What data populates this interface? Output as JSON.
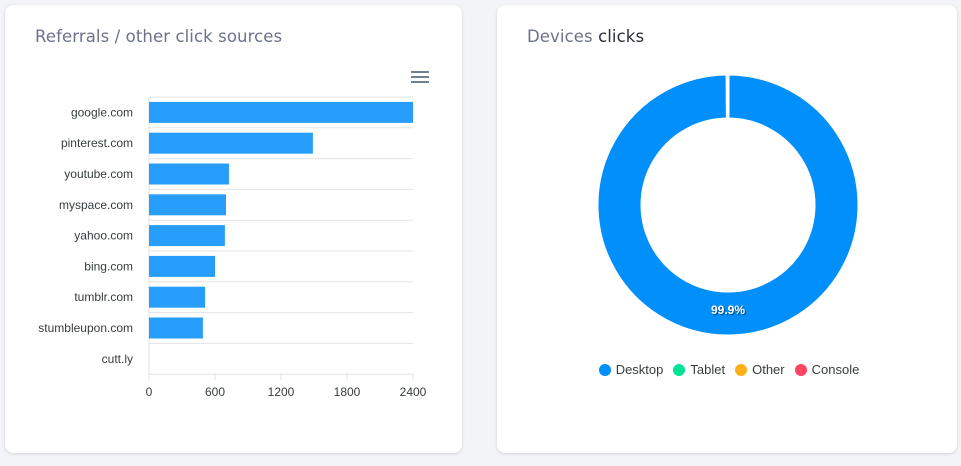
{
  "referrals": {
    "title": "Referrals / other click sources",
    "menu_icon": "hamburger-menu-icon"
  },
  "devices": {
    "title_part1": "Devices",
    "title_part2": " clicks",
    "donut_label": "99.9%",
    "legend": [
      {
        "label": "Desktop",
        "color": "#008ffb"
      },
      {
        "label": "Tablet",
        "color": "#00e396"
      },
      {
        "label": "Other",
        "color": "#feb019"
      },
      {
        "label": "Console",
        "color": "#ff4560"
      }
    ]
  },
  "chart_data": [
    {
      "type": "bar",
      "orientation": "horizontal",
      "title": "Referrals / other click sources",
      "categories": [
        "google.com",
        "pinterest.com",
        "youtube.com",
        "myspace.com",
        "yahoo.com",
        "bing.com",
        "tumblr.com",
        "stumbleupon.com",
        "cutt.ly"
      ],
      "values": [
        2400,
        1490,
        727,
        700,
        690,
        600,
        510,
        490,
        0
      ],
      "xticks": [
        0,
        600,
        1200,
        1800,
        2400
      ],
      "xlim": [
        0,
        2400
      ],
      "bar_color": "#279efb",
      "grid": true,
      "xlabel": "",
      "ylabel": ""
    },
    {
      "type": "pie",
      "variant": "donut",
      "title": "Devices clicks",
      "labels": [
        "Desktop",
        "Tablet",
        "Other",
        "Console"
      ],
      "values": [
        99.9,
        0.05,
        0.03,
        0.02
      ],
      "colors": [
        "#008ffb",
        "#00e396",
        "#feb019",
        "#ff4560"
      ],
      "data_labels": [
        "99.9%"
      ],
      "legend_position": "bottom"
    }
  ]
}
